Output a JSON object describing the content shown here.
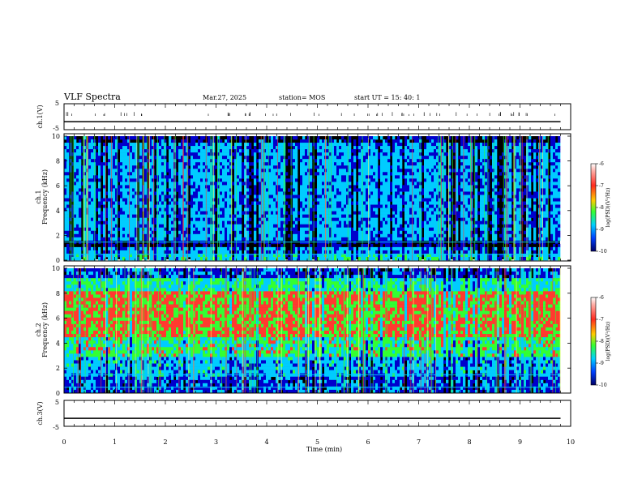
{
  "header": {
    "title": "VLF Spectra",
    "date": "Mar.27, 2025",
    "station": "station= MOS",
    "start": "start  UT  =   15: 40: 1"
  },
  "colorbar": {
    "label": "log(PSD)(V²/Hz)",
    "ticks": [
      -6,
      -7,
      -8,
      -9,
      -10
    ]
  },
  "colors": {
    "background": "#000000",
    "low": "#0000cc",
    "mid": "#00ccff",
    "green": "#33ff33",
    "high": "#ff3b2f"
  },
  "chart_data": [
    {
      "type": "line",
      "name": "ch1-waveform",
      "ylabel": "ch.1(V)",
      "ylim": [
        -5,
        5
      ],
      "yticks": [
        5,
        -5
      ],
      "x": [
        0,
        9.8
      ],
      "y": [
        -1.9,
        -1.9
      ]
    },
    {
      "type": "heatmap",
      "name": "ch1-spectrogram",
      "ylabel": "ch.1 Frequency (kHz)",
      "ylim": [
        0,
        10
      ],
      "yticks": [
        0,
        2,
        4,
        6,
        8,
        10
      ],
      "xlim": [
        0,
        9.8
      ],
      "value_range": [
        -10,
        -6
      ]
    },
    {
      "type": "heatmap",
      "name": "ch2-spectrogram",
      "ylabel": "ch.2 Frequency (kHz)",
      "ylim": [
        0,
        10
      ],
      "yticks": [
        0,
        2,
        4,
        6,
        8,
        10
      ],
      "xlim": [
        0,
        9.8
      ],
      "value_range": [
        -10,
        -6
      ]
    },
    {
      "type": "line",
      "name": "ch3-waveform",
      "ylabel": "ch.3(V)",
      "ylim": [
        -5,
        5
      ],
      "yticks": [
        5,
        -5
      ],
      "x": [
        0,
        9.8
      ],
      "y": [
        -1.9,
        -1.9
      ]
    }
  ],
  "xaxis": {
    "label": "Time  (min)",
    "ticks": [
      0,
      1,
      2,
      3,
      4,
      5,
      6,
      7,
      8,
      9,
      10
    ],
    "xlim": [
      0,
      10
    ]
  }
}
